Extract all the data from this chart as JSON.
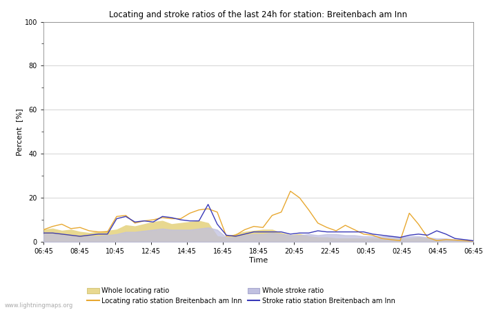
{
  "title": "Locating and stroke ratios of the last 24h for station: Breitenbach am Inn",
  "ylabel": "Percent  [%]",
  "xlabel": "Time",
  "watermark": "www.lightningmaps.org",
  "ylim": [
    0,
    100
  ],
  "yticks": [
    0,
    20,
    40,
    60,
    80,
    100
  ],
  "x_labels": [
    "06:45",
    "08:45",
    "10:45",
    "12:45",
    "14:45",
    "16:45",
    "18:45",
    "20:45",
    "22:45",
    "00:45",
    "02:45",
    "04:45",
    "06:45"
  ],
  "color_locating_fill": "#e8d890",
  "color_locating_line": "#e8a830",
  "color_stroke_fill": "#c0c0e0",
  "color_stroke_line": "#3838b8",
  "locating_fill": [
    5.5,
    6.0,
    5.0,
    5.5,
    4.5,
    4.0,
    4.5,
    5.0,
    5.5,
    7.5,
    7.0,
    8.0,
    9.0,
    9.5,
    8.0,
    8.5,
    9.0,
    9.5,
    8.5,
    2.5,
    2.0,
    3.5,
    4.5,
    5.0,
    5.5,
    5.5,
    4.0,
    3.0,
    3.5,
    2.5,
    2.0,
    2.0,
    1.5,
    1.5,
    1.5,
    1.5,
    1.5,
    1.5,
    1.5,
    1.5,
    1.5,
    2.0,
    1.5,
    1.0,
    1.0,
    0.8,
    0.5,
    0.3
  ],
  "locating_line": [
    5.5,
    7.0,
    8.0,
    6.0,
    6.5,
    5.0,
    4.5,
    4.5,
    11.5,
    12.0,
    8.5,
    9.5,
    10.0,
    11.0,
    10.5,
    10.5,
    13.0,
    14.5,
    15.0,
    13.5,
    2.5,
    3.0,
    5.5,
    7.0,
    6.5,
    12.0,
    13.5,
    23.0,
    20.0,
    14.5,
    8.5,
    6.5,
    5.0,
    7.5,
    5.5,
    3.5,
    3.0,
    1.5,
    1.0,
    0.5,
    13.0,
    8.0,
    2.0,
    0.5,
    1.0,
    0.8,
    0.5,
    0.3
  ],
  "stroke_fill": [
    3.5,
    3.5,
    3.0,
    2.5,
    2.0,
    2.5,
    2.5,
    3.0,
    3.5,
    4.5,
    4.5,
    5.0,
    5.5,
    6.0,
    5.5,
    5.5,
    5.5,
    6.0,
    6.5,
    5.5,
    2.0,
    2.0,
    3.0,
    3.5,
    3.5,
    4.0,
    3.5,
    3.0,
    3.0,
    3.5,
    3.0,
    3.5,
    3.5,
    3.0,
    3.0,
    2.5,
    2.5,
    2.5,
    2.5,
    2.0,
    2.5,
    2.5,
    2.0,
    1.5,
    1.5,
    1.0,
    0.8,
    0.5
  ],
  "stroke_line": [
    4.0,
    4.0,
    3.5,
    3.0,
    2.5,
    3.0,
    3.5,
    3.5,
    10.5,
    11.5,
    9.0,
    9.5,
    9.0,
    11.5,
    11.0,
    10.0,
    9.5,
    9.5,
    17.0,
    8.0,
    3.0,
    2.5,
    3.5,
    4.5,
    4.5,
    4.5,
    4.5,
    3.5,
    4.0,
    4.0,
    5.0,
    4.5,
    4.5,
    4.5,
    4.5,
    4.5,
    3.5,
    3.0,
    2.5,
    2.0,
    3.0,
    3.5,
    3.0,
    5.0,
    3.5,
    1.5,
    1.0,
    0.5
  ]
}
